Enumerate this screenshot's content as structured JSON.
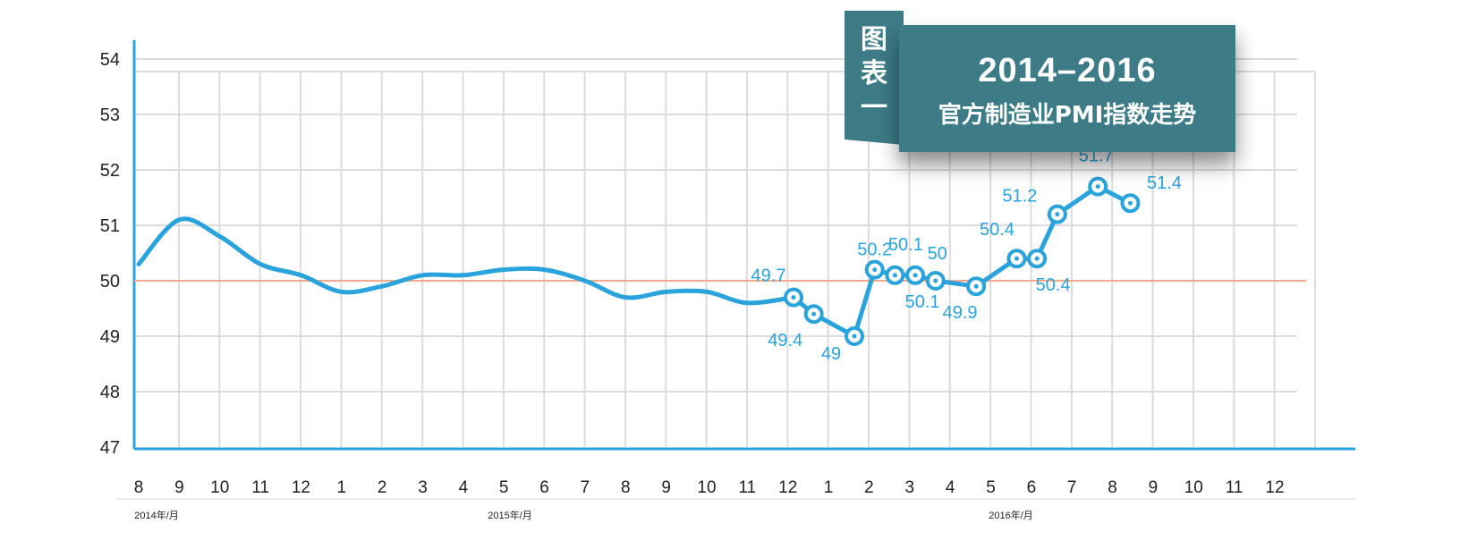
{
  "title": {
    "tag": "图表一",
    "main": "2014–2016",
    "sub": "官方制造业PMI指数走势"
  },
  "colors": {
    "line": "#2aa3dc",
    "reference_line": "#f4a98b",
    "axis": "#2aa3dc",
    "grid": "#dcdcdc",
    "title_bg": "#3d7b87"
  },
  "chart_data": {
    "type": "line",
    "title": "2014–2016 官方制造业PMI指数走势",
    "xlabel": "",
    "ylabel": "",
    "ylim": [
      47,
      54
    ],
    "yticks": [
      47,
      48,
      49,
      50,
      51,
      52,
      53,
      54
    ],
    "reference_line": 50,
    "grid": true,
    "x_tick_labels": [
      "8",
      "9",
      "10",
      "11",
      "12",
      "1",
      "2",
      "3",
      "4",
      "5",
      "6",
      "7",
      "8",
      "9",
      "10",
      "11",
      "12",
      "1",
      "2",
      "3",
      "4",
      "5",
      "6",
      "7",
      "8",
      "9",
      "10",
      "11",
      "12"
    ],
    "year_labels": [
      "2014年/月",
      "2015年/月",
      "2016年/月"
    ],
    "series": [
      {
        "smooth_segment": [
          {
            "x": "2014-08",
            "y": 50.3
          },
          {
            "x": "2014-09",
            "y": 51.1
          },
          {
            "x": "2014-10",
            "y": 50.8
          },
          {
            "x": "2014-11",
            "y": 50.3
          },
          {
            "x": "2014-12",
            "y": 50.1
          },
          {
            "x": "2015-01",
            "y": 49.8
          },
          {
            "x": "2015-02",
            "y": 49.9
          },
          {
            "x": "2015-03",
            "y": 50.1
          },
          {
            "x": "2015-04",
            "y": 50.1
          },
          {
            "x": "2015-05",
            "y": 50.2
          },
          {
            "x": "2015-06",
            "y": 50.2
          },
          {
            "x": "2015-07",
            "y": 50.0
          },
          {
            "x": "2015-08",
            "y": 49.7
          },
          {
            "x": "2015-09",
            "y": 49.8
          },
          {
            "x": "2015-10",
            "y": 49.8
          },
          {
            "x": "2015-11",
            "y": 49.6
          }
        ],
        "points": [
          {
            "label": "49.7",
            "y": 49.7
          },
          {
            "label": "49.4",
            "y": 49.4
          },
          {
            "label": "49",
            "y": 49.0
          },
          {
            "label": "50.2",
            "y": 50.2
          },
          {
            "label": "50.1",
            "y": 50.1
          },
          {
            "label": "50.1",
            "y": 50.1
          },
          {
            "label": "50",
            "y": 50.0
          },
          {
            "label": "49.9",
            "y": 49.9
          },
          {
            "label": "50.4",
            "y": 50.4
          },
          {
            "label": "50.4",
            "y": 50.4
          },
          {
            "label": "51.2",
            "y": 51.2
          },
          {
            "label": "51.7",
            "y": 51.7
          },
          {
            "label": "51.4",
            "y": 51.4
          }
        ]
      }
    ]
  }
}
